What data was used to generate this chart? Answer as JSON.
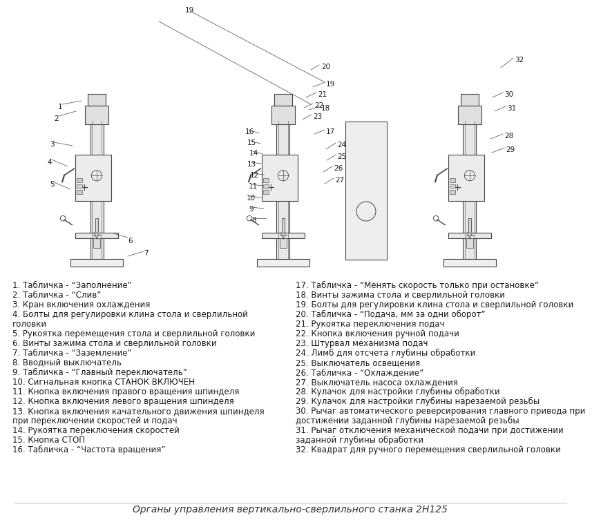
{
  "title": "Органы управления вертикально-сверлильного станка 2Н125",
  "background_color": "#ffffff",
  "left_labels": [
    [
      "1. Табличка - “Заполнение”",
      false
    ],
    [
      "2. Табличка - “Слив”",
      false
    ],
    [
      "3. Кран включения охлаждения",
      false
    ],
    [
      "4. Болты для регулировки клина стола и сверлильной",
      false
    ],
    [
      "головки",
      false
    ],
    [
      "5. Рукоятка перемещения стола и сверлильной головки",
      false
    ],
    [
      "6. Винты зажима стола и сверлильной головки",
      false
    ],
    [
      "7. Табличка - “Заземление”",
      false
    ],
    [
      "8. Вводный выключатель",
      false
    ],
    [
      "9. Табличка - “Главный переключатель”",
      false
    ],
    [
      "10. Сигнальная кнопка СТАНОК ВКЛЮЧЕН",
      false
    ],
    [
      "11. Кнопка включения правого вращения шпинделя",
      false
    ],
    [
      "12. Кнопка включения левого вращения шпинделя",
      false
    ],
    [
      "13. Кнопка включения качательного движения шпинделя",
      false
    ],
    [
      "при переключении скоростей и подач",
      false
    ],
    [
      "14. Рукоятка переключения скоростей",
      false
    ],
    [
      "15. Кнопка СТОП",
      false
    ],
    [
      "16. Табличка - “Частота вращения”",
      false
    ]
  ],
  "right_labels": [
    [
      "17. Табличка - “Менять скорость только при остановке”",
      false
    ],
    [
      "18. Винты зажима стола и сверлильной головки",
      false
    ],
    [
      "19. Болты для регулировки клина стола и сверлильной головки",
      false
    ],
    [
      "20. Табличка - “Подача, мм за одни оборот”",
      false
    ],
    [
      "21. Рукоятка переключения подач",
      false
    ],
    [
      "22. Кнопка включения ручной подачи",
      false
    ],
    [
      "23. Штурвал механизма подач",
      false
    ],
    [
      "24. Лимб для отсчета глубины обработки",
      false
    ],
    [
      "25. Выключатель освещения",
      false
    ],
    [
      "26. Табличка - “Охлаждение”",
      false
    ],
    [
      "27. Выключатель насоса охлаждения",
      false
    ],
    [
      "28. Кулачок для настройки глубины обработки",
      false
    ],
    [
      "29. Кулачок для настройки глубины нарезаемой резьбы",
      false
    ],
    [
      "30. Рычаг автоматического реверсирования главного привода при",
      false
    ],
    [
      "достижении заданной глубины нарезаемой резьбы",
      false
    ],
    [
      "31. Рычаг отключения механической подачи при достижении",
      false
    ],
    [
      "заданной глубины обработки",
      false
    ],
    [
      "32. Квадрат для ручного перемещения сверлильной головки",
      false
    ]
  ],
  "text_color": "#1a1a1a",
  "font_size": 8.5,
  "title_font_size": 10,
  "diagram_bg": "#ffffff",
  "line_color": "#555555"
}
